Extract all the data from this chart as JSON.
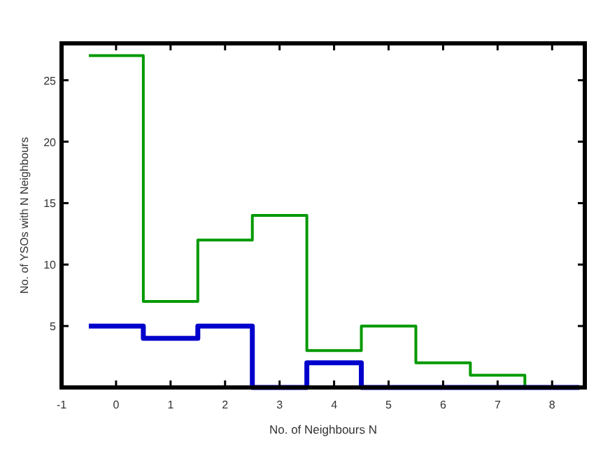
{
  "chart_data": {
    "type": "histogram",
    "xlabel": "No. of Neighbours N",
    "ylabel": "No. of YSOs with N Neighbours",
    "bins": [
      -0.5,
      0.5,
      1.5,
      2.5,
      3.5,
      4.5,
      5.5,
      6.5,
      7.5,
      8.5
    ],
    "series": [
      {
        "color": "#009900",
        "values": [
          27,
          7,
          12,
          14,
          3,
          5,
          2,
          1,
          0
        ]
      },
      {
        "color": "#0000cc",
        "values": [
          5,
          4,
          5,
          0,
          2,
          0,
          0,
          0,
          0
        ]
      }
    ],
    "xlim": [
      -1,
      8.6
    ],
    "xticks": [
      -1,
      0,
      1,
      2,
      3,
      4,
      5,
      6,
      7,
      8
    ],
    "ylim": [
      0,
      28
    ],
    "yticks": [
      5,
      10,
      15,
      20,
      25
    ],
    "grid": false
  }
}
